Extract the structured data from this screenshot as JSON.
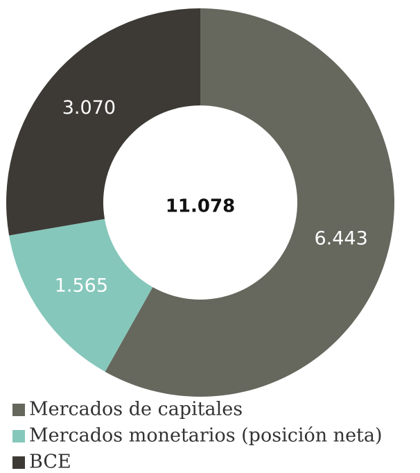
{
  "chart_data": {
    "type": "donut",
    "categories": [
      "Mercados de capitales",
      "Mercados monetarios (posición neta)",
      "BCE"
    ],
    "values": [
      6443,
      1565,
      3070
    ],
    "value_labels": [
      "6.443",
      "1.565",
      "3.070"
    ],
    "colors": [
      "#66675d",
      "#86c7bb",
      "#3d3a35"
    ],
    "center_label": "11.078"
  }
}
